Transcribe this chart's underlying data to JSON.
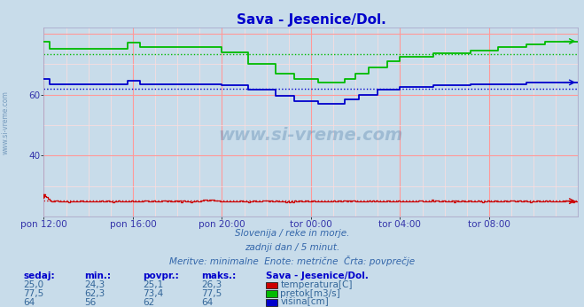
{
  "title": "Sava - Jesenice/Dol.",
  "title_color": "#0000cc",
  "bg_color": "#c8dcea",
  "plot_bg_color": "#c8dcea",
  "grid_major_color": "#ff9999",
  "grid_minor_color": "#ffdddd",
  "ylim": [
    20,
    82
  ],
  "ytick_vals": [
    40,
    60
  ],
  "ytick_labels": [
    "40",
    "60"
  ],
  "n_points": 289,
  "temp_color": "#cc0000",
  "pretok_color": "#00bb00",
  "visina_color": "#0000cc",
  "avg_temp": 25.1,
  "avg_pretok": 73.4,
  "avg_visina": 62.0,
  "subtitle1": "Slovenija / reke in morje.",
  "subtitle2": "zadnji dan / 5 minut.",
  "subtitle3": "Meritve: minimalne  Enote: metrične  Črta: povprečje",
  "col_headers": [
    "sedaj:",
    "min.:",
    "povpr.:",
    "maks.:",
    "Sava - Jesenice/Dol."
  ],
  "rows": [
    [
      "25,0",
      "24,3",
      "25,1",
      "26,3",
      "temperatura[C]"
    ],
    [
      "77,5",
      "62,3",
      "73,4",
      "77,5",
      "pretok[m3/s]"
    ],
    [
      "64",
      "56",
      "62",
      "64",
      "višina[cm]"
    ]
  ],
  "row_colors": [
    "#cc0000",
    "#00bb00",
    "#0000cc"
  ],
  "watermark": "www.si-vreme.com",
  "sidebar": "www.si-vreme.com",
  "xtick_labels": [
    "pon 12:00",
    "pon 16:00",
    "pon 20:00",
    "tor 00:00",
    "tor 04:00",
    "tor 08:00"
  ]
}
